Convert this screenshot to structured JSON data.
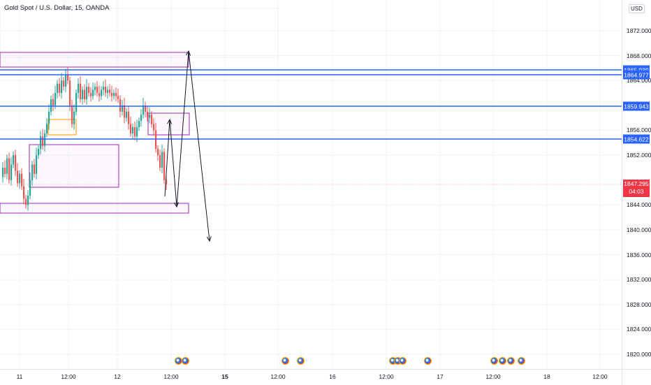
{
  "header": {
    "title": "Gold Spot / U.S. Dollar, 15, OANDA",
    "currency": "USD"
  },
  "price_axis": {
    "labels": [
      "1872.000",
      "1868.000",
      "1864.000",
      "1856.000",
      "1852.000",
      "1844.000",
      "1840.000",
      "1836.000",
      "1832.000",
      "1828.000",
      "1824.000",
      "1820.000"
    ]
  },
  "horizontal_lines": [
    {
      "label": "1865.939",
      "color": "#2962ff"
    },
    {
      "label": "1864.977",
      "color": "#2962ff"
    },
    {
      "label": "1859.943",
      "color": "#2962ff"
    },
    {
      "label": "1854.622",
      "color": "#2962ff"
    }
  ],
  "current_price": {
    "price": "1847.295",
    "countdown": "04:03",
    "color": "#f23645"
  },
  "time_axis": {
    "labels": [
      {
        "text": "11",
        "bold": false
      },
      {
        "text": "12:00",
        "bold": false
      },
      {
        "text": "12",
        "bold": false
      },
      {
        "text": "12:00",
        "bold": false
      },
      {
        "text": "15",
        "bold": true
      },
      {
        "text": "12:00",
        "bold": false
      },
      {
        "text": "16",
        "bold": false
      },
      {
        "text": "12:00",
        "bold": false
      },
      {
        "text": "17",
        "bold": false
      },
      {
        "text": "12:00",
        "bold": false
      },
      {
        "text": "18",
        "bold": false
      },
      {
        "text": "12:00",
        "bold": false
      }
    ]
  },
  "event_icons": [
    "us-flag-icon",
    "us-flag-icon",
    "us-flag-icon",
    "us-flag-icon",
    "us-flag-icon",
    "us-flag-icon",
    "us-flag-icon",
    "us-flag-icon",
    "us-flag-icon",
    "us-flag-icon",
    "us-flag-icon",
    "us-flag-icon"
  ],
  "colors": {
    "up": "#26a69a",
    "down": "#ef5350",
    "zone": "#9c27b0",
    "orange_zone": "#ff9800",
    "grid": "#f0f3fa"
  }
}
